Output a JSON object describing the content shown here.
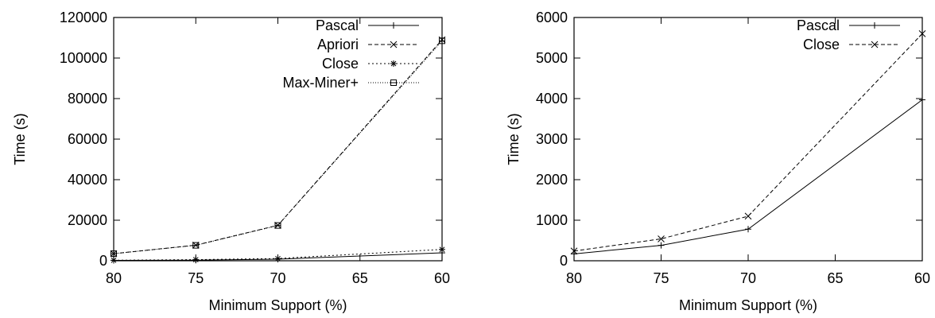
{
  "chart_data": [
    {
      "type": "line",
      "title": "",
      "xlabel": "Minimum Support (%)",
      "ylabel": "Time (s)",
      "x": [
        80,
        75,
        70,
        60
      ],
      "xlim": [
        80,
        60
      ],
      "ylim": [
        0,
        120000
      ],
      "xticks": [
        "80",
        "75",
        "70",
        "65",
        "60"
      ],
      "yticks": [
        "0",
        "20000",
        "40000",
        "60000",
        "80000",
        "100000",
        "120000"
      ],
      "grid": false,
      "legend_position": "top-right",
      "series": [
        {
          "name": "Pascal",
          "values": [
            200,
            300,
            800,
            3900
          ],
          "marker": "plus",
          "dash": ""
        },
        {
          "name": "Apriori",
          "values": [
            3500,
            7700,
            17500,
            109000
          ],
          "marker": "cross",
          "dash": "5,3"
        },
        {
          "name": "Close",
          "values": [
            250,
            550,
            1100,
            5600
          ],
          "marker": "star",
          "dash": "2,3"
        },
        {
          "name": "Max-Miner+",
          "values": [
            3500,
            7600,
            17400,
            108500
          ],
          "marker": "box",
          "dash": "1,2"
        }
      ]
    },
    {
      "type": "line",
      "title": "",
      "xlabel": "Minimum Support (%)",
      "ylabel": "Time (s)",
      "x": [
        80,
        75,
        70,
        60
      ],
      "xlim": [
        80,
        60
      ],
      "ylim": [
        0,
        6000
      ],
      "xticks": [
        "80",
        "75",
        "70",
        "65",
        "60"
      ],
      "yticks": [
        "0",
        "1000",
        "2000",
        "3000",
        "4000",
        "5000",
        "6000"
      ],
      "grid": false,
      "legend_position": "top-right",
      "series": [
        {
          "name": "Pascal",
          "values": [
            170,
            380,
            780,
            3970
          ],
          "marker": "plus",
          "dash": ""
        },
        {
          "name": "Close",
          "values": [
            240,
            540,
            1100,
            5600
          ],
          "marker": "cross",
          "dash": "5,3"
        }
      ]
    }
  ]
}
